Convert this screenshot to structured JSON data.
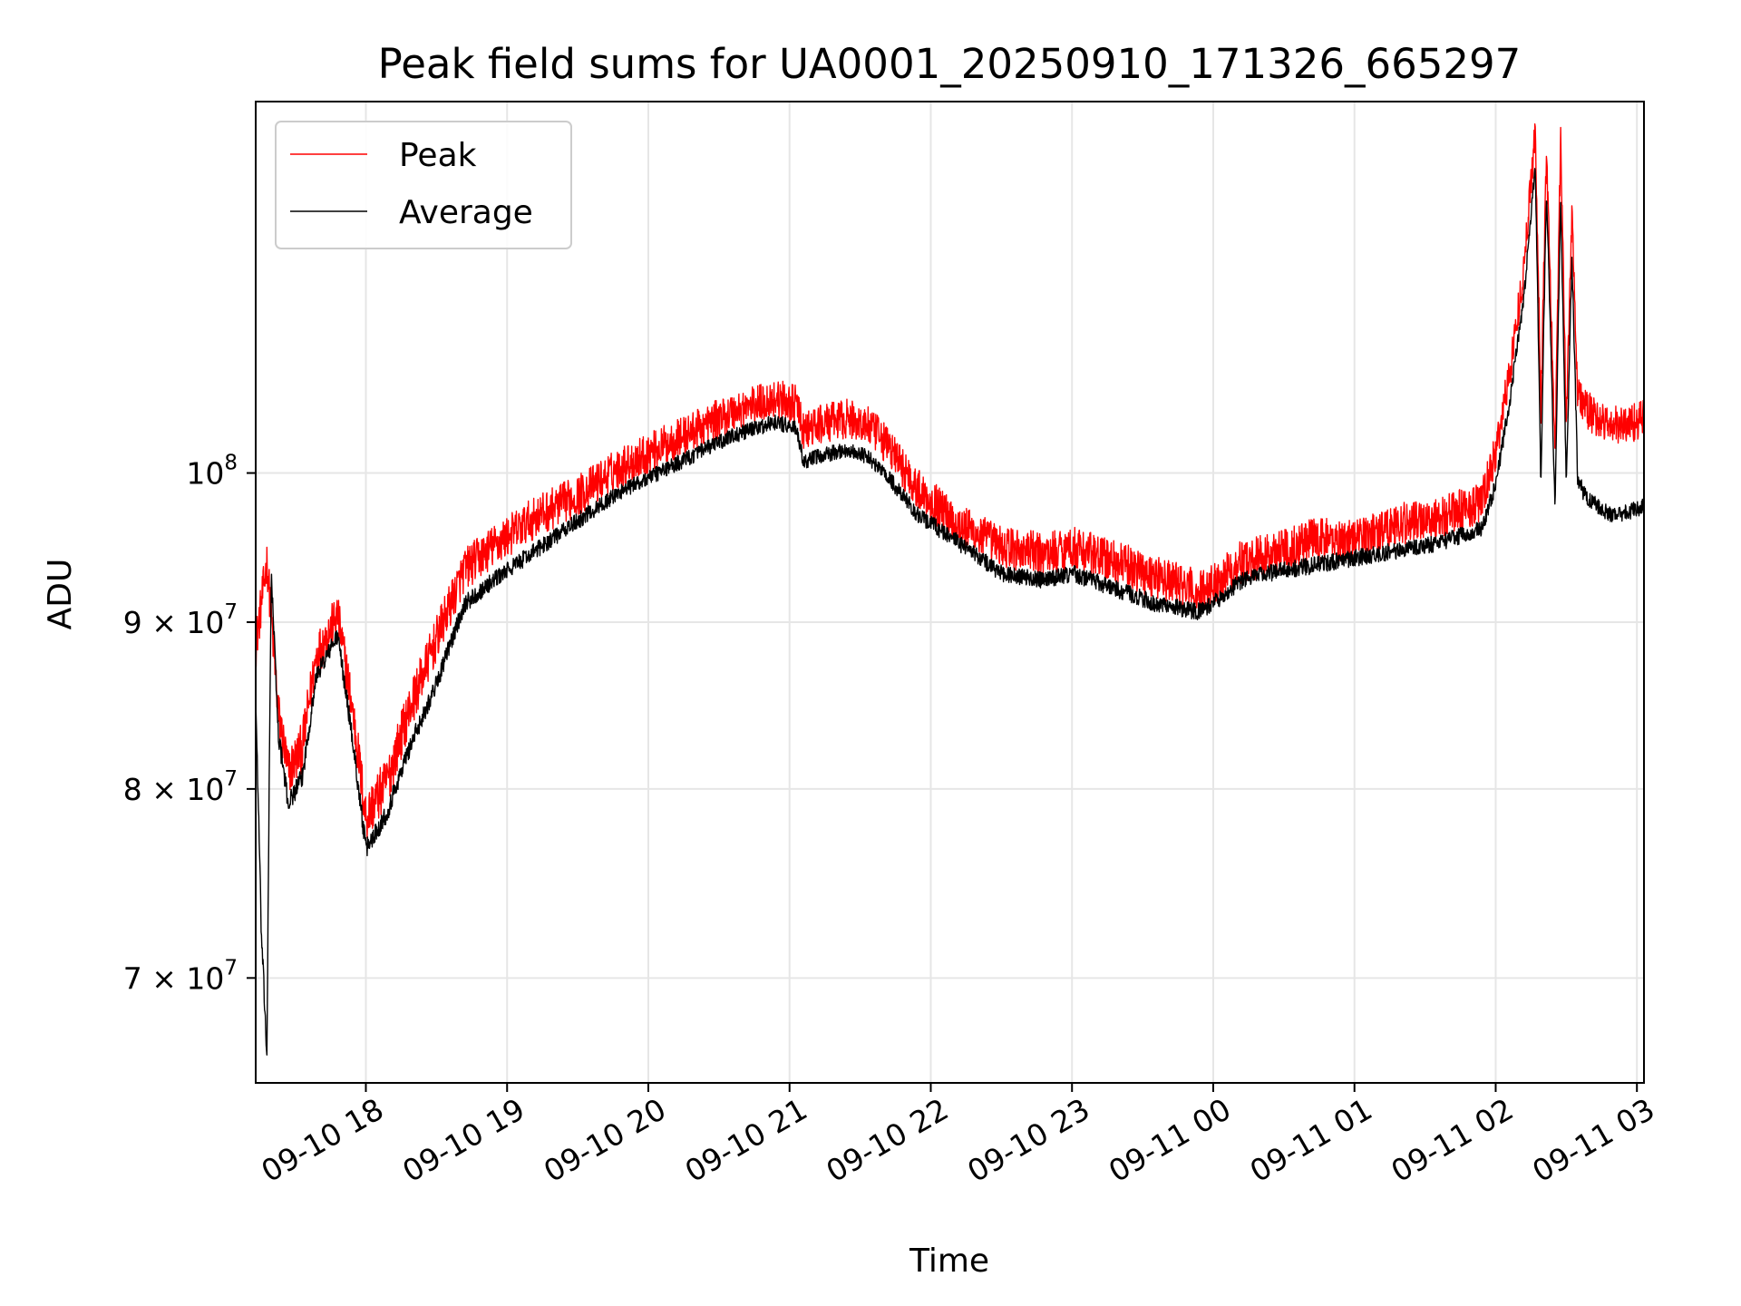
{
  "chart_data": {
    "type": "line",
    "title": "Peak field sums for UA0001_20250910_171326_665297",
    "xlabel": "Time",
    "ylabel": "ADU",
    "yscale": "log",
    "ylim": [
      65000000,
      130000000
    ],
    "xlim_hours": [
      17.22,
      27.05
    ],
    "grid": true,
    "legend": {
      "placement": "upper-left",
      "entries": [
        "Peak",
        "Average"
      ]
    },
    "x_ticks": [
      {
        "hour": 18,
        "label": "09-10 18"
      },
      {
        "hour": 19,
        "label": "09-10 19"
      },
      {
        "hour": 20,
        "label": "09-10 20"
      },
      {
        "hour": 21,
        "label": "09-10 21"
      },
      {
        "hour": 22,
        "label": "09-10 22"
      },
      {
        "hour": 23,
        "label": "09-10 23"
      },
      {
        "hour": 24,
        "label": "09-11 00"
      },
      {
        "hour": 25,
        "label": "09-11 01"
      },
      {
        "hour": 26,
        "label": "09-11 02"
      },
      {
        "hour": 27,
        "label": "09-11 03"
      }
    ],
    "y_ticks": [
      {
        "value": 70000000,
        "base": "7 × 10",
        "exp": "7"
      },
      {
        "value": 80000000,
        "base": "8 × 10",
        "exp": "7"
      },
      {
        "value": 90000000,
        "base": "9 × 10",
        "exp": "7"
      },
      {
        "value": 100000000,
        "base": "10",
        "exp": "8"
      }
    ],
    "series": [
      {
        "name": "Peak",
        "color": "#ff0000",
        "noise": 1800000,
        "x": [
          17.22,
          17.3,
          17.38,
          17.45,
          17.55,
          17.65,
          17.8,
          17.9,
          18.0,
          18.15,
          18.3,
          18.5,
          18.7,
          18.9,
          19.2,
          19.5,
          19.8,
          20.0,
          20.3,
          20.6,
          20.9,
          21.05,
          21.1,
          21.2,
          21.4,
          21.55,
          21.7,
          21.9,
          22.2,
          22.5,
          22.8,
          23.0,
          23.3,
          23.6,
          23.9,
          24.0,
          24.2,
          24.4,
          24.7,
          25.0,
          25.3,
          25.6,
          25.9,
          26.0,
          26.1,
          26.2,
          26.28,
          26.32,
          26.36,
          26.42,
          26.46,
          26.5,
          26.54,
          26.58,
          26.62,
          26.66,
          26.72,
          26.8,
          26.9,
          27.05
        ],
        "y": [
          88000000,
          93500000,
          84000000,
          80500000,
          82000000,
          87500000,
          90000000,
          84500000,
          78000000,
          80000000,
          84000000,
          88500000,
          93000000,
          94500000,
          96500000,
          98000000,
          100000000,
          101000000,
          102500000,
          104000000,
          105000000,
          104500000,
          102500000,
          103000000,
          103500000,
          103000000,
          101500000,
          98500000,
          96000000,
          94500000,
          94000000,
          94500000,
          93500000,
          92500000,
          91500000,
          92000000,
          93500000,
          94000000,
          95000000,
          95000000,
          96000000,
          96500000,
          97500000,
          101000000,
          107000000,
          115000000,
          127000000,
          104000000,
          125000000,
          100000000,
          126000000,
          103000000,
          120000000,
          105500000,
          104500000,
          104000000,
          103500000,
          103000000,
          103000000,
          103500000
        ]
      },
      {
        "name": "Average",
        "color": "#000000",
        "noise": 700000,
        "x": [
          17.22,
          17.26,
          17.3,
          17.33,
          17.38,
          17.45,
          17.55,
          17.65,
          17.8,
          17.9,
          18.0,
          18.15,
          18.3,
          18.5,
          18.7,
          18.9,
          19.2,
          19.5,
          19.8,
          20.0,
          20.3,
          20.6,
          20.9,
          21.05,
          21.1,
          21.2,
          21.4,
          21.55,
          21.7,
          21.9,
          22.2,
          22.5,
          22.8,
          23.0,
          23.3,
          23.6,
          23.9,
          24.0,
          24.2,
          24.4,
          24.7,
          25.0,
          25.3,
          25.6,
          25.9,
          26.0,
          26.1,
          26.2,
          26.28,
          26.32,
          26.36,
          26.42,
          26.46,
          26.5,
          26.54,
          26.58,
          26.62,
          26.66,
          26.72,
          26.8,
          26.9,
          27.05
        ],
        "y": [
          85000000,
          72000000,
          66000000,
          93000000,
          83000000,
          79000000,
          80500000,
          86500000,
          89000000,
          83000000,
          76500000,
          78500000,
          82000000,
          86000000,
          91000000,
          92500000,
          94500000,
          96500000,
          98500000,
          99500000,
          101000000,
          102500000,
          103500000,
          103000000,
          100500000,
          101000000,
          101500000,
          101000000,
          99500000,
          97000000,
          95000000,
          93000000,
          92500000,
          93000000,
          92000000,
          91000000,
          90500000,
          91000000,
          92500000,
          93000000,
          93500000,
          94000000,
          94500000,
          95000000,
          96000000,
          99000000,
          105000000,
          113000000,
          124000000,
          99000000,
          122000000,
          97000000,
          121000000,
          99000000,
          116000000,
          99500000,
          98500000,
          98000000,
          97500000,
          97000000,
          97000000,
          97500000
        ]
      }
    ]
  }
}
